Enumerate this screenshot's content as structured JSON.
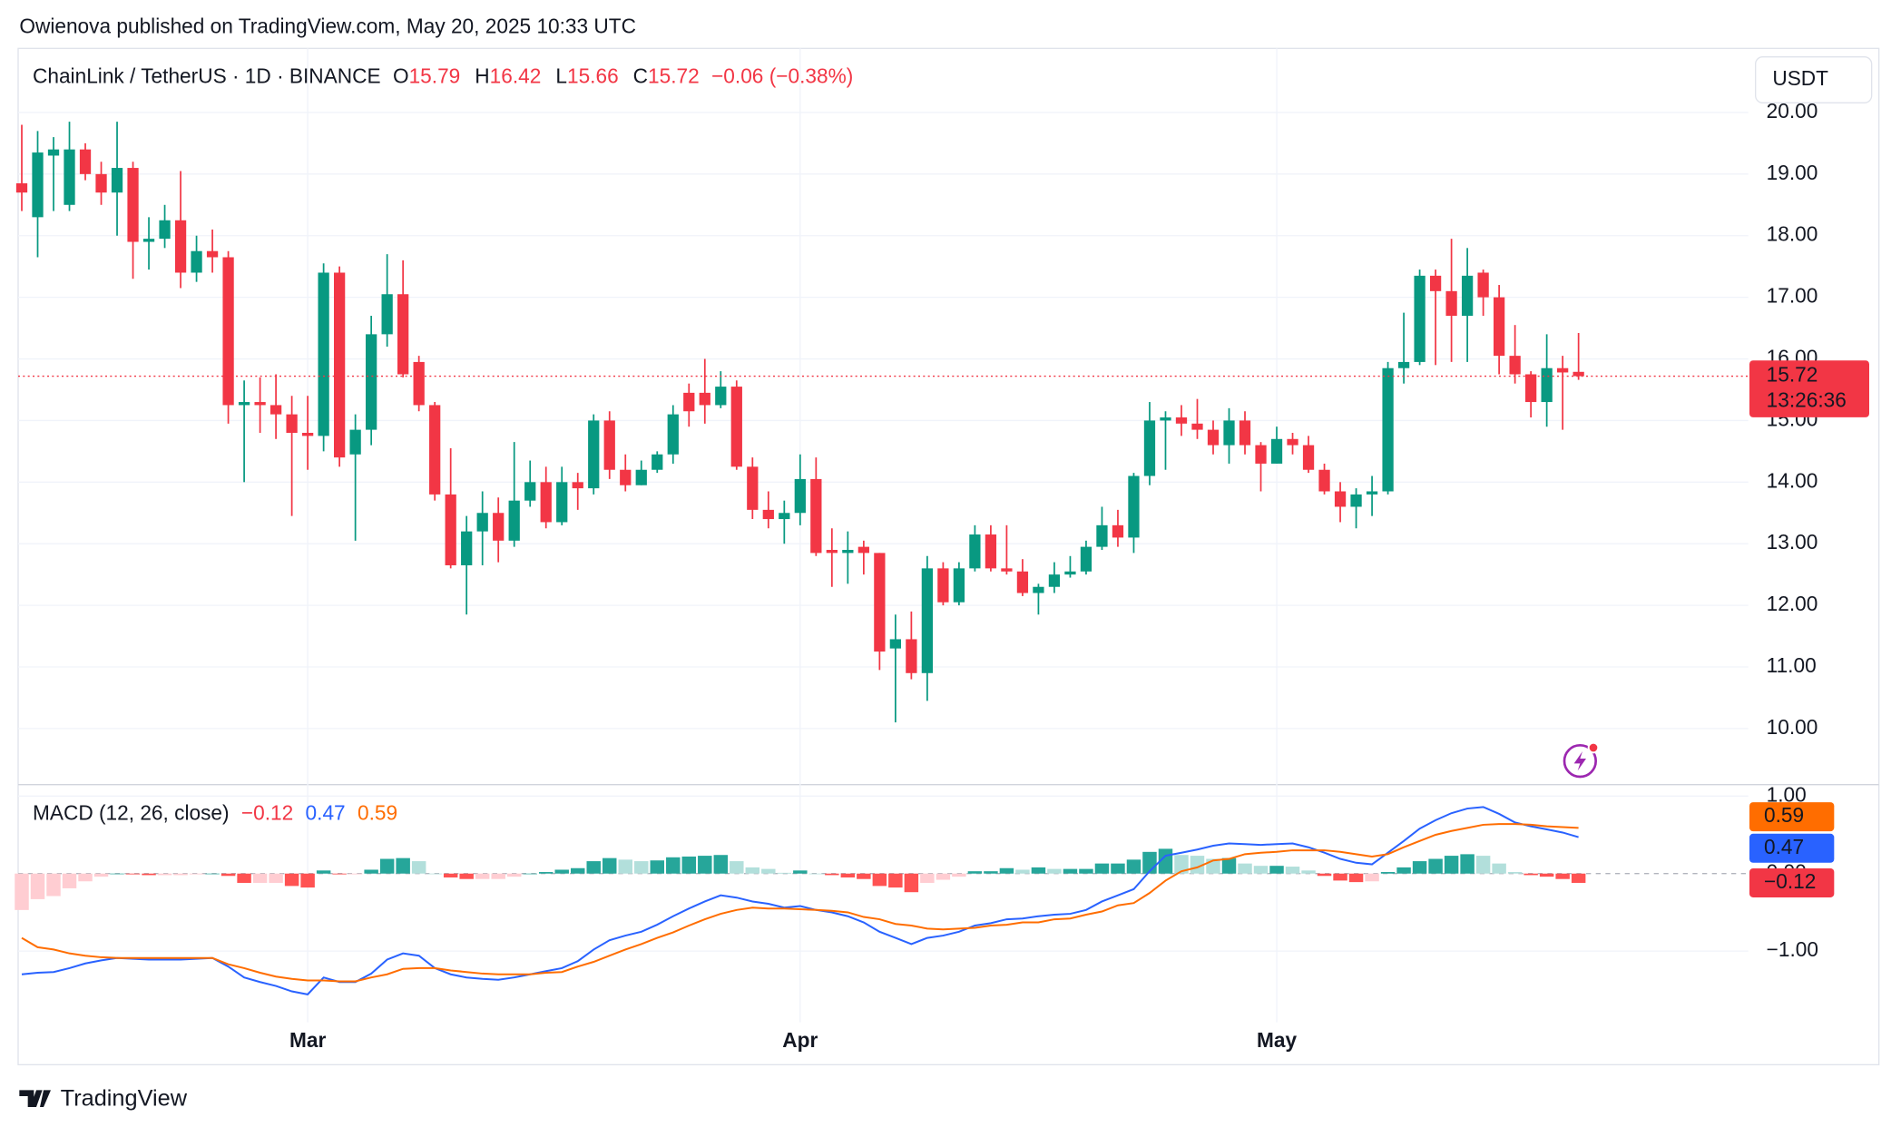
{
  "header": {
    "published": "Owienova published on TradingView.com, May 20, 2025 10:33 UTC"
  },
  "footer": {
    "brand": "TradingView"
  },
  "chart_data": [
    {
      "type": "candlestick",
      "title": "ChainLink / TetherUS · 1D · BINANCE",
      "ohlc_labels": [
        "O",
        "H",
        "L",
        "C"
      ],
      "change": "−0.06 (−0.38%)",
      "currency": "USDT",
      "countdown": "13:26:36",
      "up_color": "#089981",
      "down_color": "#f23645",
      "grid": true,
      "categories": [
        null,
        null,
        null,
        null,
        null,
        null,
        null,
        null,
        null,
        null,
        null,
        null,
        null,
        null,
        null,
        null,
        null,
        null,
        "Mar",
        null,
        null,
        null,
        null,
        null,
        null,
        null,
        null,
        null,
        null,
        null,
        null,
        null,
        null,
        null,
        null,
        null,
        null,
        null,
        null,
        null,
        null,
        null,
        null,
        null,
        null,
        null,
        null,
        null,
        null,
        "Apr",
        null,
        null,
        null,
        null,
        null,
        null,
        null,
        null,
        null,
        null,
        null,
        null,
        null,
        null,
        null,
        null,
        null,
        null,
        null,
        null,
        null,
        null,
        null,
        null,
        null,
        null,
        null,
        null,
        null,
        "May",
        null,
        null,
        null,
        null,
        null,
        null,
        null,
        null,
        null,
        null,
        null,
        null,
        null,
        null,
        null,
        null,
        null,
        null,
        null
      ],
      "open": [
        18.85,
        18.3,
        19.3,
        18.5,
        19.4,
        19.0,
        18.7,
        19.1,
        17.9,
        17.95,
        18.25,
        17.4,
        17.75,
        17.65,
        15.25,
        15.3,
        15.25,
        15.1,
        14.8,
        14.75,
        17.4,
        14.45,
        14.85,
        16.4,
        17.05,
        15.95,
        15.25,
        13.8,
        12.65,
        13.2,
        13.5,
        13.05,
        13.7,
        14.0,
        13.35,
        14.0,
        13.9,
        15.0,
        14.2,
        13.95,
        14.2,
        14.45,
        15.45,
        15.45,
        15.25,
        15.55,
        14.25,
        13.55,
        13.4,
        13.5,
        14.05,
        12.9,
        12.85,
        12.95,
        12.85,
        11.3,
        11.45,
        10.9,
        12.6,
        12.05,
        12.6,
        13.15,
        12.6,
        12.55,
        12.2,
        12.3,
        12.5,
        12.55,
        12.95,
        13.3,
        13.1,
        14.1,
        15.0,
        15.05,
        14.95,
        14.85,
        14.6,
        15.0,
        14.6,
        14.3,
        14.7,
        14.6,
        14.2,
        13.85,
        13.6,
        13.8,
        13.85,
        15.85,
        15.95,
        17.35,
        17.1,
        16.7,
        17.4,
        17.0,
        16.05,
        15.75,
        15.3,
        15.85,
        15.79
      ],
      "high": [
        19.8,
        19.7,
        19.6,
        19.85,
        19.5,
        19.2,
        19.85,
        19.2,
        18.3,
        18.5,
        19.05,
        18.0,
        18.1,
        17.75,
        15.65,
        15.7,
        15.75,
        15.4,
        15.4,
        17.55,
        17.5,
        15.1,
        16.7,
        17.7,
        17.6,
        16.05,
        15.3,
        14.55,
        13.45,
        13.85,
        13.75,
        14.65,
        14.35,
        14.25,
        14.25,
        14.15,
        15.1,
        15.15,
        14.45,
        14.35,
        14.5,
        15.25,
        15.6,
        16.0,
        15.8,
        15.65,
        14.4,
        13.85,
        13.7,
        14.45,
        14.4,
        13.25,
        13.2,
        13.05,
        12.85,
        11.85,
        11.9,
        12.8,
        12.7,
        12.7,
        13.3,
        13.3,
        13.3,
        12.75,
        12.35,
        12.7,
        12.8,
        13.05,
        13.6,
        13.55,
        14.15,
        15.3,
        15.15,
        15.25,
        15.35,
        15.0,
        15.2,
        15.15,
        14.65,
        14.9,
        14.8,
        14.75,
        14.3,
        14.0,
        13.9,
        14.1,
        15.95,
        16.75,
        17.45,
        17.45,
        17.95,
        17.8,
        17.45,
        17.2,
        16.55,
        15.8,
        16.4,
        16.05,
        16.42
      ],
      "low": [
        18.4,
        17.65,
        18.4,
        18.4,
        18.9,
        18.5,
        18.0,
        17.3,
        17.45,
        17.8,
        17.15,
        17.25,
        17.4,
        14.95,
        14.0,
        14.8,
        14.7,
        13.45,
        14.2,
        14.5,
        14.25,
        13.05,
        14.6,
        16.2,
        15.7,
        15.15,
        13.7,
        12.6,
        11.85,
        12.65,
        12.7,
        12.95,
        13.6,
        13.25,
        13.3,
        13.55,
        13.8,
        14.05,
        13.85,
        13.95,
        14.15,
        14.3,
        14.9,
        14.95,
        15.2,
        14.2,
        13.4,
        13.25,
        13.0,
        13.3,
        12.8,
        12.3,
        12.35,
        12.5,
        10.95,
        10.1,
        10.8,
        10.45,
        12.0,
        12.0,
        12.55,
        12.55,
        12.5,
        12.15,
        11.85,
        12.2,
        12.45,
        12.5,
        12.9,
        12.95,
        12.85,
        13.95,
        14.2,
        14.75,
        14.7,
        14.45,
        14.3,
        14.45,
        13.85,
        14.3,
        14.45,
        14.15,
        13.8,
        13.35,
        13.25,
        13.45,
        13.8,
        15.6,
        15.9,
        15.9,
        15.95,
        15.95,
        16.7,
        15.75,
        15.6,
        15.05,
        14.9,
        14.85,
        15.66
      ],
      "close": [
        18.7,
        19.35,
        19.4,
        19.4,
        19.0,
        18.7,
        19.1,
        17.9,
        17.95,
        18.25,
        17.4,
        17.75,
        17.65,
        15.25,
        15.3,
        15.25,
        15.1,
        14.8,
        14.75,
        17.4,
        14.4,
        14.85,
        16.4,
        17.05,
        15.75,
        15.25,
        13.8,
        12.65,
        13.2,
        13.5,
        13.05,
        13.7,
        14.0,
        13.35,
        14.0,
        13.9,
        15.0,
        14.2,
        13.95,
        14.2,
        14.45,
        15.1,
        15.15,
        15.25,
        15.55,
        14.25,
        13.55,
        13.4,
        13.5,
        14.05,
        12.85,
        12.85,
        12.9,
        12.85,
        11.25,
        11.45,
        10.9,
        12.6,
        12.05,
        12.6,
        13.15,
        12.6,
        12.55,
        12.2,
        12.3,
        12.5,
        12.55,
        12.95,
        13.3,
        13.1,
        14.1,
        15.0,
        15.05,
        14.95,
        14.85,
        14.6,
        15.0,
        14.6,
        14.3,
        14.7,
        14.6,
        14.2,
        13.85,
        13.6,
        13.8,
        13.85,
        15.85,
        15.95,
        17.35,
        17.1,
        16.7,
        17.35,
        17.0,
        16.05,
        15.75,
        15.3,
        15.85,
        15.78,
        15.72
      ],
      "ylim": [
        9.1,
        21.04
      ],
      "yticks": [
        {
          "value": 10,
          "label": "10.00"
        },
        {
          "value": 11,
          "label": "11.00"
        },
        {
          "value": 12,
          "label": "12.00"
        },
        {
          "value": 13,
          "label": "13.00"
        },
        {
          "value": 14,
          "label": "14.00"
        },
        {
          "value": 15,
          "label": "15.00"
        },
        {
          "value": 16,
          "label": "16.00"
        },
        {
          "value": 17,
          "label": "17.00"
        },
        {
          "value": 18,
          "label": "18.00"
        },
        {
          "value": 19,
          "label": "19.00"
        },
        {
          "value": 20,
          "label": "20.00"
        }
      ]
    },
    {
      "type": "macd",
      "title": "MACD (12, 26, close)",
      "ylim": [
        -1.92,
        1.125
      ],
      "yticks": [
        {
          "value": -1,
          "label": "−1.00"
        },
        {
          "value": 0,
          "label": "0.00"
        },
        {
          "value": 1,
          "label": "1.00"
        }
      ],
      "series": [
        {
          "kind": "histogram",
          "color": "#f23645",
          "colors": {
            "up": "#26a69a",
            "up_fading": "#b2dfdb",
            "down": "#ff5252",
            "down_fading": "#ffcdd2"
          },
          "last_label": "−0.12",
          "values": [
            -0.47,
            -0.33,
            -0.29,
            -0.19,
            -0.1,
            -0.04,
            0.0,
            -0.01,
            -0.02,
            -0.02,
            -0.02,
            -0.01,
            0.0,
            -0.03,
            -0.12,
            -0.12,
            -0.12,
            -0.16,
            -0.18,
            0.04,
            -0.01,
            -0.01,
            0.05,
            0.19,
            0.2,
            0.16,
            0.0,
            -0.05,
            -0.07,
            -0.07,
            -0.07,
            -0.04,
            0.0,
            0.02,
            0.05,
            0.07,
            0.16,
            0.2,
            0.18,
            0.16,
            0.17,
            0.21,
            0.22,
            0.23,
            0.24,
            0.16,
            0.08,
            0.06,
            0.01,
            0.04,
            0.0,
            -0.02,
            -0.05,
            -0.07,
            -0.16,
            -0.18,
            -0.24,
            -0.12,
            -0.08,
            -0.04,
            0.03,
            0.03,
            0.07,
            0.05,
            0.08,
            0.06,
            0.06,
            0.06,
            0.13,
            0.13,
            0.18,
            0.28,
            0.32,
            0.24,
            0.23,
            0.19,
            0.2,
            0.13,
            0.1,
            0.1,
            0.09,
            0.04,
            -0.03,
            -0.09,
            -0.11,
            -0.1,
            0.02,
            0.08,
            0.16,
            0.19,
            0.23,
            0.25,
            0.23,
            0.13,
            0.02,
            -0.02,
            -0.04,
            -0.07,
            -0.12
          ]
        },
        {
          "kind": "line",
          "color": "#2962ff",
          "values": [
            -1.3,
            -1.28,
            -1.27,
            -1.22,
            -1.16,
            -1.12,
            -1.09,
            -1.1,
            -1.11,
            -1.11,
            -1.11,
            -1.1,
            -1.09,
            -1.2,
            -1.34,
            -1.4,
            -1.45,
            -1.52,
            -1.56,
            -1.34,
            -1.4,
            -1.4,
            -1.29,
            -1.11,
            -1.03,
            -1.06,
            -1.22,
            -1.3,
            -1.34,
            -1.36,
            -1.37,
            -1.34,
            -1.3,
            -1.26,
            -1.22,
            -1.13,
            -0.98,
            -0.86,
            -0.8,
            -0.75,
            -0.66,
            -0.55,
            -0.45,
            -0.36,
            -0.28,
            -0.31,
            -0.36,
            -0.39,
            -0.44,
            -0.42,
            -0.47,
            -0.5,
            -0.55,
            -0.63,
            -0.75,
            -0.83,
            -0.91,
            -0.83,
            -0.8,
            -0.75,
            -0.67,
            -0.64,
            -0.59,
            -0.58,
            -0.55,
            -0.53,
            -0.52,
            -0.47,
            -0.36,
            -0.28,
            -0.2,
            0.03,
            0.23,
            0.27,
            0.31,
            0.36,
            0.39,
            0.38,
            0.37,
            0.38,
            0.39,
            0.34,
            0.27,
            0.19,
            0.14,
            0.12,
            0.27,
            0.42,
            0.58,
            0.69,
            0.78,
            0.84,
            0.86,
            0.77,
            0.66,
            0.61,
            0.57,
            0.53,
            0.47
          ]
        },
        {
          "kind": "line",
          "color": "#ff6d00",
          "values": [
            -0.83,
            -0.95,
            -0.98,
            -1.03,
            -1.06,
            -1.08,
            -1.09,
            -1.09,
            -1.09,
            -1.09,
            -1.09,
            -1.09,
            -1.09,
            -1.17,
            -1.22,
            -1.28,
            -1.33,
            -1.36,
            -1.38,
            -1.38,
            -1.39,
            -1.39,
            -1.34,
            -1.3,
            -1.23,
            -1.22,
            -1.22,
            -1.25,
            -1.27,
            -1.29,
            -1.3,
            -1.3,
            -1.3,
            -1.28,
            -1.27,
            -1.2,
            -1.14,
            -1.06,
            -0.98,
            -0.91,
            -0.83,
            -0.76,
            -0.67,
            -0.59,
            -0.52,
            -0.47,
            -0.44,
            -0.45,
            -0.45,
            -0.46,
            -0.47,
            -0.48,
            -0.5,
            -0.56,
            -0.59,
            -0.65,
            -0.67,
            -0.71,
            -0.72,
            -0.71,
            -0.7,
            -0.67,
            -0.66,
            -0.63,
            -0.63,
            -0.59,
            -0.58,
            -0.53,
            -0.49,
            -0.41,
            -0.38,
            -0.25,
            -0.09,
            0.03,
            0.08,
            0.17,
            0.19,
            0.25,
            0.27,
            0.28,
            0.3,
            0.3,
            0.3,
            0.28,
            0.25,
            0.22,
            0.25,
            0.34,
            0.42,
            0.5,
            0.55,
            0.59,
            0.63,
            0.64,
            0.64,
            0.63,
            0.61,
            0.6,
            0.59
          ]
        }
      ]
    }
  ]
}
